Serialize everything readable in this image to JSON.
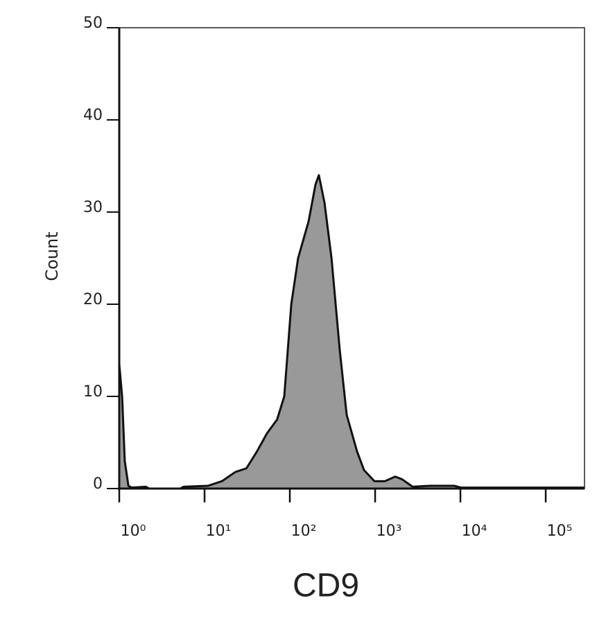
{
  "chart_data": {
    "type": "area",
    "xlabel": "CD9",
    "ylabel": "Count",
    "xscale": "log",
    "color": "#999999",
    "line_color": "#111111",
    "x": [
      1,
      1.08,
      1.16,
      1.28,
      1.4,
      2.04,
      2.24,
      5.19,
      5.7,
      11,
      16,
      23,
      31,
      41,
      54,
      71,
      86,
      104,
      125,
      166,
      200,
      219,
      255,
      308,
      385,
      464,
      615,
      741,
      981,
      1300,
      1722,
      2075,
      2750,
      4390,
      8450,
      10200,
      19600,
      285000
    ],
    "values": [
      13.5,
      10,
      3,
      0.3,
      0.1,
      0.2,
      0,
      0,
      0.2,
      0.3,
      0.8,
      1.8,
      2.2,
      4,
      6,
      7.5,
      10,
      20,
      25,
      29,
      33,
      34,
      31,
      25,
      15,
      8,
      4,
      2,
      0.8,
      0.8,
      1.3,
      1,
      0.2,
      0.3,
      0.3,
      0.1,
      0.1,
      0.1
    ],
    "xlim": [
      1,
      285000
    ],
    "ylim": [
      0,
      50
    ],
    "xticks": [
      {
        "value": 1,
        "label": "10⁰"
      },
      {
        "value": 10,
        "label": "10¹"
      },
      {
        "value": 100,
        "label": "10²"
      },
      {
        "value": 1000,
        "label": "10³"
      },
      {
        "value": 10000,
        "label": "10⁴"
      },
      {
        "value": 100000,
        "label": "10⁵"
      }
    ],
    "yticks": [
      0,
      10,
      20,
      30,
      40,
      50
    ]
  }
}
